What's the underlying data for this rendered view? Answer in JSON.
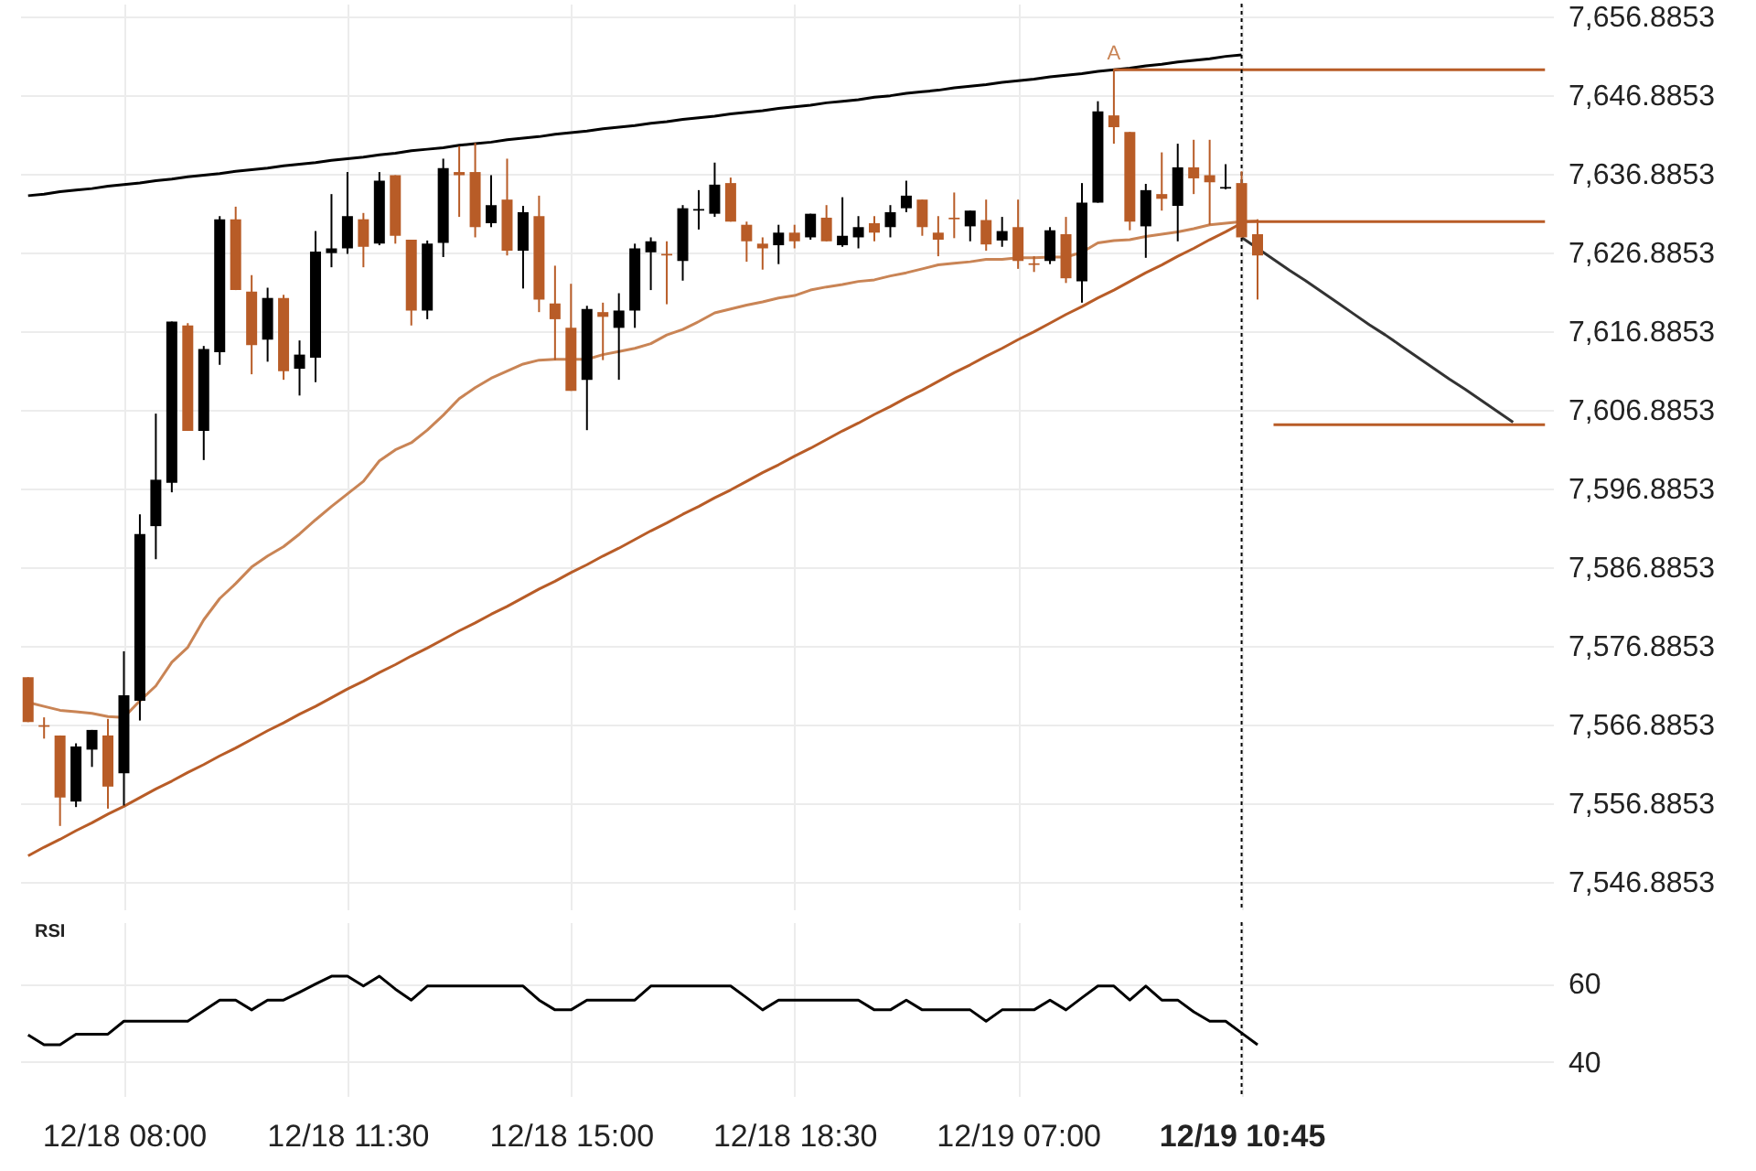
{
  "chart_data": [
    {
      "type": "candlestick",
      "categories": [
        null,
        null,
        null,
        null,
        null,
        null,
        "12/18 08:00",
        null,
        null,
        null,
        null,
        null,
        null,
        null,
        null,
        null,
        null,
        null,
        null,
        null,
        "12/18 11:30",
        null,
        null,
        null,
        null,
        null,
        null,
        null,
        null,
        null,
        null,
        null,
        null,
        null,
        "12/18 15:00",
        null,
        null,
        null,
        null,
        null,
        null,
        null,
        null,
        null,
        null,
        null,
        null,
        null,
        "12/18 18:30",
        null,
        null,
        null,
        null,
        null,
        null,
        null,
        null,
        null,
        null,
        null,
        null,
        null,
        "12/19 07:00",
        null,
        null,
        null,
        null,
        null,
        null,
        null,
        null,
        null,
        null,
        null,
        null,
        null,
        "12/19 10:45",
        null,
        null,
        null,
        null,
        null,
        null,
        null,
        null,
        null,
        null,
        null,
        null,
        null,
        null,
        null,
        null,
        null,
        null,
        null
      ],
      "ohlc": [
        [
          7572.9,
          7572.9,
          7567.2,
          7567.2
        ],
        [
          7566.8,
          7567.8,
          7565.1,
          7566.6
        ],
        [
          7565.5,
          7565.5,
          7554.0,
          7557.6
        ],
        [
          7557.1,
          7564.5,
          7556.4,
          7564.1
        ],
        [
          7563.7,
          7566.2,
          7561.5,
          7566.2
        ],
        [
          7565.5,
          7567.6,
          7556.2,
          7559.0
        ],
        [
          7560.7,
          7576.2,
          7556.6,
          7570.6
        ],
        [
          7569.9,
          7593.6,
          7567.4,
          7591.1
        ],
        [
          7592.1,
          7606.4,
          7587.9,
          7598.0
        ],
        [
          7597.6,
          7618.1,
          7596.4,
          7618.1
        ],
        [
          7617.6,
          7617.9,
          7604.2,
          7604.2
        ],
        [
          7604.2,
          7615.0,
          7600.5,
          7614.6
        ],
        [
          7614.2,
          7631.5,
          7612.6,
          7631.1
        ],
        [
          7631.1,
          7632.7,
          7622.1,
          7622.1
        ],
        [
          7621.9,
          7624.0,
          7611.4,
          7615.1
        ],
        [
          7615.8,
          7622.4,
          7613.0,
          7621.1
        ],
        [
          7621.1,
          7621.5,
          7610.7,
          7611.8
        ],
        [
          7612.1,
          7615.7,
          7608.7,
          7613.9
        ],
        [
          7613.5,
          7629.6,
          7610.4,
          7627.0
        ],
        [
          7626.8,
          7634.3,
          7625.0,
          7627.4
        ],
        [
          7627.4,
          7637.1,
          7626.7,
          7631.5
        ],
        [
          7631.1,
          7631.9,
          7625.0,
          7627.6
        ],
        [
          7628.0,
          7637.1,
          7627.8,
          7636.0
        ],
        [
          7636.7,
          7636.7,
          7628.0,
          7629.0
        ],
        [
          7628.5,
          7628.5,
          7617.6,
          7619.5
        ],
        [
          7619.5,
          7628.4,
          7618.4,
          7628.0
        ],
        [
          7628.1,
          7638.8,
          7626.3,
          7637.6
        ],
        [
          7637.1,
          7640.4,
          7631.4,
          7636.7
        ],
        [
          7637.1,
          7640.8,
          7628.8,
          7630.1
        ],
        [
          7630.6,
          7636.7,
          7630.1,
          7632.9
        ],
        [
          7633.6,
          7638.8,
          7626.5,
          7627.1
        ],
        [
          7627.1,
          7632.8,
          7622.3,
          7632.0
        ],
        [
          7631.5,
          7634.1,
          7619.3,
          7620.9
        ],
        [
          7620.4,
          7625.2,
          7613.2,
          7618.4
        ],
        [
          7617.3,
          7622.9,
          7609.3,
          7609.3
        ],
        [
          7610.7,
          7620.1,
          7604.3,
          7619.7
        ],
        [
          7619.3,
          7620.5,
          7613.2,
          7618.7
        ],
        [
          7617.3,
          7621.7,
          7610.7,
          7619.5
        ],
        [
          7619.5,
          7628.0,
          7617.3,
          7627.4
        ],
        [
          7626.9,
          7628.8,
          7622.1,
          7628.3
        ],
        [
          7626.7,
          7628.3,
          7620.3,
          7626.5
        ],
        [
          7625.8,
          7632.9,
          7623.3,
          7632.5
        ],
        [
          7632.2,
          7634.8,
          7629.8,
          7632.4
        ],
        [
          7631.8,
          7638.3,
          7631.4,
          7635.5
        ],
        [
          7635.7,
          7636.4,
          7630.8,
          7630.8
        ],
        [
          7630.4,
          7630.8,
          7625.7,
          7628.3
        ],
        [
          7628.0,
          7628.8,
          7624.7,
          7627.4
        ],
        [
          7627.8,
          7630.4,
          7625.4,
          7629.4
        ],
        [
          7629.4,
          7630.4,
          7627.4,
          7628.3
        ],
        [
          7628.8,
          7631.8,
          7628.5,
          7631.8
        ],
        [
          7631.3,
          7632.9,
          7628.3,
          7628.3
        ],
        [
          7627.8,
          7633.9,
          7627.6,
          7629.0
        ],
        [
          7628.8,
          7631.5,
          7627.4,
          7630.1
        ],
        [
          7630.6,
          7631.5,
          7628.3,
          7629.4
        ],
        [
          7630.1,
          7632.9,
          7628.8,
          7632.0
        ],
        [
          7632.5,
          7636.0,
          7632.0,
          7634.1
        ],
        [
          7633.6,
          7633.6,
          7629.0,
          7630.1
        ],
        [
          7629.4,
          7631.5,
          7626.4,
          7628.5
        ],
        [
          7631.3,
          7634.5,
          7628.7,
          7631.1
        ],
        [
          7630.2,
          7632.2,
          7628.3,
          7632.2
        ],
        [
          7631.0,
          7633.6,
          7627.1,
          7627.9
        ],
        [
          7628.4,
          7631.4,
          7627.6,
          7629.6
        ],
        [
          7630.1,
          7633.6,
          7624.8,
          7625.8
        ],
        [
          7625.5,
          7626.4,
          7624.4,
          7625.3
        ],
        [
          7625.8,
          7630.1,
          7625.4,
          7629.7
        ],
        [
          7629.2,
          7631.4,
          7623.0,
          7623.6
        ],
        [
          7623.2,
          7635.7,
          7620.5,
          7633.2
        ],
        [
          7633.2,
          7646.1,
          7633.2,
          7644.8
        ],
        [
          7644.3,
          7650.2,
          7640.7,
          7642.8
        ],
        [
          7642.2,
          7642.2,
          7629.7,
          7630.8
        ],
        [
          7630.2,
          7635.6,
          7626.2,
          7634.8
        ],
        [
          7634.3,
          7639.6,
          7632.2,
          7633.7
        ],
        [
          7632.8,
          7640.7,
          7628.3,
          7637.7
        ],
        [
          7637.7,
          7641.2,
          7634.3,
          7636.3
        ],
        [
          7636.7,
          7641.2,
          7630.4,
          7635.8
        ],
        [
          7635.0,
          7638.1,
          7634.9,
          7635.2
        ],
        [
          7635.7,
          7637.2,
          7628.8,
          7628.8
        ],
        [
          7629.2,
          7631.1,
          7620.9,
          7626.5
        ],
        null,
        null,
        null,
        null,
        null,
        null,
        null,
        null,
        null,
        null,
        null,
        null,
        null,
        null,
        null,
        null,
        null,
        null
      ],
      "colors": [
        "#b85c27",
        "#b85c27",
        "#b85c27",
        "#000000",
        "#000000",
        "#b85c27",
        "#000000",
        "#000000",
        "#000000",
        "#000000",
        "#b85c27",
        "#000000",
        "#000000",
        "#b85c27",
        "#b85c27",
        "#000000",
        "#b85c27",
        "#000000",
        "#000000",
        "#000000",
        "#000000",
        "#b85c27",
        "#000000",
        "#b85c27",
        "#b85c27",
        "#000000",
        "#000000",
        "#b85c27",
        "#b85c27",
        "#000000",
        "#b85c27",
        "#000000",
        "#b85c27",
        "#b85c27",
        "#b85c27",
        "#000000",
        "#b85c27",
        "#000000",
        "#000000",
        "#000000",
        "#b85c27",
        "#000000",
        "#000000",
        "#000000",
        "#b85c27",
        "#b85c27",
        "#b85c27",
        "#000000",
        "#b85c27",
        "#000000",
        "#b85c27",
        "#000000",
        "#000000",
        "#b85c27",
        "#000000",
        "#000000",
        "#b85c27",
        "#b85c27",
        "#b85c27",
        "#000000",
        "#b85c27",
        "#000000",
        "#b85c27",
        "#b85c27",
        "#000000",
        "#b85c27",
        "#000000",
        "#000000",
        "#b85c27",
        "#b85c27",
        "#000000",
        "#b85c27",
        "#000000",
        "#b85c27",
        "#b85c27",
        "#000000",
        "#b85c27",
        "#b85c27",
        null,
        null,
        null,
        null,
        null,
        null,
        null,
        null,
        null,
        null,
        null,
        null,
        null,
        null,
        null,
        null,
        null,
        null
      ],
      "series": [
        {
          "type": "line",
          "color": "#c98455",
          "values": [
            7569.7,
            7569.2,
            7568.7,
            7568.5,
            7568.3,
            7567.9,
            7567.8,
            7569.9,
            7571.8,
            7574.8,
            7576.7,
            7580.2,
            7582.9,
            7584.8,
            7586.9,
            7588.3,
            7589.5,
            7591.1,
            7592.9,
            7594.6,
            7596.2,
            7597.8,
            7600.4,
            7601.8,
            7602.7,
            7604.3,
            7606.2,
            7608.3,
            7609.7,
            7610.9,
            7611.8,
            7612.7,
            7613.2,
            7613.3,
            7613.3,
            7613.3,
            7613.9,
            7614.3,
            7614.7,
            7615.3,
            7616.4,
            7617.1,
            7618.1,
            7619.2,
            7619.7,
            7620.2,
            7620.6,
            7621.1,
            7621.4,
            7622.1,
            7622.5,
            7622.8,
            7623.2,
            7623.4,
            7623.9,
            7624.3,
            7624.8,
            7625.3,
            7625.5,
            7625.7,
            7626.0,
            7626.0,
            7626.2,
            7626.2,
            7626.3,
            7626.3,
            7626.9,
            7628.1,
            7628.4,
            7628.5,
            7628.9,
            7629.2,
            7629.5,
            7629.9,
            7630.4,
            7630.6,
            7630.8,
            7630.9,
            null,
            null,
            null,
            null,
            null,
            null,
            null,
            null,
            null,
            null,
            null,
            null,
            null,
            null,
            null,
            null,
            null,
            null
          ]
        },
        {
          "type": "line",
          "color": "#000000",
          "values": [
            7634.1,
            7634.3,
            7634.6,
            7634.8,
            7635.0,
            7635.3,
            7635.5,
            7635.7,
            7636.0,
            7636.2,
            7636.5,
            7636.7,
            7636.9,
            7637.2,
            7637.4,
            7637.6,
            7637.9,
            7638.1,
            7638.3,
            7638.6,
            7638.8,
            7639.0,
            7639.3,
            7639.5,
            7639.8,
            7640.0,
            7640.2,
            7640.5,
            7640.7,
            7640.9,
            7641.2,
            7641.4,
            7641.6,
            7641.9,
            7642.1,
            7642.3,
            7642.6,
            7642.8,
            7643.0,
            7643.3,
            7643.5,
            7643.8,
            7644.0,
            7644.2,
            7644.5,
            7644.7,
            7644.9,
            7645.2,
            7645.4,
            7645.6,
            7645.9,
            7646.1,
            7646.3,
            7646.6,
            7646.8,
            7647.1,
            7647.3,
            7647.5,
            7647.8,
            7648.0,
            7648.2,
            7648.5,
            7648.7,
            7648.9,
            7649.2,
            7649.4,
            7649.6,
            7649.9,
            7650.1,
            7650.3,
            7650.6,
            7650.8,
            7651.1,
            7651.3,
            7651.5,
            7651.8,
            7652.0,
            null,
            null,
            null,
            null,
            null,
            null,
            null,
            null,
            null,
            null,
            null,
            null,
            null,
            null,
            null,
            null,
            null,
            null,
            null
          ]
        },
        {
          "type": "line",
          "color": "#b85c27",
          "values": [
            7550.2,
            7551.3,
            7552.3,
            7553.4,
            7554.4,
            7555.5,
            7556.5,
            7557.6,
            7558.7,
            7559.7,
            7560.8,
            7561.8,
            7562.9,
            7563.9,
            7565.0,
            7566.1,
            7567.1,
            7568.2,
            7569.2,
            7570.3,
            7571.4,
            7572.4,
            7573.5,
            7574.5,
            7575.6,
            7576.6,
            7577.7,
            7578.8,
            7579.8,
            7580.9,
            7581.9,
            7583.0,
            7584.1,
            7585.1,
            7586.2,
            7587.2,
            7588.3,
            7589.3,
            7590.4,
            7591.5,
            7592.5,
            7593.6,
            7594.6,
            7595.7,
            7596.7,
            7597.8,
            7598.9,
            7599.9,
            7601.0,
            7602.0,
            7603.1,
            7604.2,
            7605.2,
            7606.3,
            7607.3,
            7608.4,
            7609.4,
            7610.5,
            7611.6,
            7612.6,
            7613.7,
            7614.7,
            7615.8,
            7616.8,
            7617.9,
            7619.0,
            7620.0,
            7621.1,
            7622.1,
            7623.2,
            7624.3,
            7625.3,
            7626.4,
            7627.4,
            7628.5,
            7629.5,
            7630.6,
            null,
            null,
            null,
            null,
            null,
            null,
            null,
            null,
            null,
            null,
            null,
            null,
            null,
            null,
            null,
            null,
            null,
            null,
            null
          ]
        },
        {
          "type": "line",
          "color": "#b85c27",
          "values": [
            null,
            null,
            null,
            null,
            null,
            null,
            null,
            null,
            null,
            null,
            null,
            null,
            null,
            null,
            null,
            null,
            null,
            null,
            null,
            null,
            null,
            null,
            null,
            null,
            null,
            null,
            null,
            null,
            null,
            null,
            null,
            null,
            null,
            null,
            null,
            null,
            null,
            null,
            null,
            null,
            null,
            null,
            null,
            null,
            null,
            null,
            null,
            null,
            null,
            null,
            null,
            null,
            null,
            null,
            null,
            null,
            null,
            null,
            null,
            null,
            null,
            null,
            null,
            null,
            null,
            null,
            null,
            null,
            7650.1,
            7650.1,
            7650.1,
            7650.1,
            7650.1,
            7650.1,
            7650.1,
            7650.1,
            7650.1,
            7650.1,
            7650.1,
            7650.1,
            7650.1,
            7650.1,
            7650.1,
            7650.1,
            7650.1,
            7650.1,
            7650.1,
            7650.1,
            7650.1,
            7650.1,
            7650.1,
            7650.1,
            7650.1,
            7650.1,
            7650.1,
            7650.1
          ]
        },
        {
          "type": "line",
          "color": "#b85c27",
          "values": [
            null,
            null,
            null,
            null,
            null,
            null,
            null,
            null,
            null,
            null,
            null,
            null,
            null,
            null,
            null,
            null,
            null,
            null,
            null,
            null,
            null,
            null,
            null,
            null,
            null,
            null,
            null,
            null,
            null,
            null,
            null,
            null,
            null,
            null,
            null,
            null,
            null,
            null,
            null,
            null,
            null,
            null,
            null,
            null,
            null,
            null,
            null,
            null,
            null,
            null,
            null,
            null,
            null,
            null,
            null,
            null,
            null,
            null,
            null,
            null,
            null,
            null,
            null,
            null,
            null,
            null,
            null,
            null,
            null,
            null,
            null,
            null,
            null,
            null,
            null,
            null,
            7630.8,
            7630.8,
            7630.8,
            7630.8,
            7630.8,
            7630.8,
            7630.8,
            7630.8,
            7630.8,
            7630.8,
            7630.8,
            7630.8,
            7630.8,
            7630.8,
            7630.8,
            7630.8,
            7630.8,
            7630.8,
            7630.8,
            7630.8
          ]
        },
        {
          "type": "line",
          "color": "#b85c27",
          "values": [
            null,
            null,
            null,
            null,
            null,
            null,
            null,
            null,
            null,
            null,
            null,
            null,
            null,
            null,
            null,
            null,
            null,
            null,
            null,
            null,
            null,
            null,
            null,
            null,
            null,
            null,
            null,
            null,
            null,
            null,
            null,
            null,
            null,
            null,
            null,
            null,
            null,
            null,
            null,
            null,
            null,
            null,
            null,
            null,
            null,
            null,
            null,
            null,
            null,
            null,
            null,
            null,
            null,
            null,
            null,
            null,
            null,
            null,
            null,
            null,
            null,
            null,
            null,
            null,
            null,
            null,
            null,
            null,
            null,
            null,
            null,
            null,
            null,
            null,
            null,
            null,
            null,
            null,
            7605.0,
            7605.0,
            7605.0,
            7605.0,
            7605.0,
            7605.0,
            7605.0,
            7605.0,
            7605.0,
            7605.0,
            7605.0,
            7605.0,
            7605.0,
            7605.0,
            7605.0,
            7605.0,
            7605.0,
            7605.0
          ]
        },
        {
          "type": "line",
          "color": "#333333",
          "values": [
            null,
            null,
            null,
            null,
            null,
            null,
            null,
            null,
            null,
            null,
            null,
            null,
            null,
            null,
            null,
            null,
            null,
            null,
            null,
            null,
            null,
            null,
            null,
            null,
            null,
            null,
            null,
            null,
            null,
            null,
            null,
            null,
            null,
            null,
            null,
            null,
            null,
            null,
            null,
            null,
            null,
            null,
            null,
            null,
            null,
            null,
            null,
            null,
            null,
            null,
            null,
            null,
            null,
            null,
            null,
            null,
            null,
            null,
            null,
            null,
            null,
            null,
            null,
            null,
            null,
            null,
            null,
            null,
            null,
            null,
            null,
            null,
            null,
            null,
            null,
            null,
            7628.8,
            7627.4,
            7626.0,
            7624.6,
            7623.3,
            7621.9,
            7620.5,
            7619.1,
            7617.7,
            7616.4,
            7615.0,
            7613.6,
            7612.2,
            7610.8,
            7609.5,
            7608.1,
            7606.7,
            7605.3,
            null,
            null
          ]
        }
      ],
      "annotations": [
        {
          "text": "A",
          "y": 7650.2
        }
      ],
      "ref_lines": [
        {
          "axis": "x",
          "value": "12/19 10:45",
          "color": "#000000",
          "line_style": "dotted"
        }
      ],
      "ylim": [
        7543.4,
        7658.5
      ],
      "yticks": [
        {
          "value": 7546.8853,
          "label": "7,546.8853"
        },
        {
          "value": 7556.8853,
          "label": "7,556.8853"
        },
        {
          "value": 7566.8853,
          "label": "7,566.8853"
        },
        {
          "value": 7576.8853,
          "label": "7,576.8853"
        },
        {
          "value": 7586.8853,
          "label": "7,586.8853"
        },
        {
          "value": 7596.8853,
          "label": "7,596.8853"
        },
        {
          "value": 7606.8853,
          "label": "7,606.8853"
        },
        {
          "value": 7616.8853,
          "label": "7,616.8853"
        },
        {
          "value": 7626.8853,
          "label": "7,626.8853"
        },
        {
          "value": 7636.8853,
          "label": "7,636.8853"
        },
        {
          "value": 7646.8853,
          "label": "7,646.8853"
        },
        {
          "value": 7656.8853,
          "label": "7,656.8853"
        }
      ],
      "grid": true,
      "tick_labels": "y"
    },
    {
      "type": "line",
      "title": "RSI",
      "categories": [
        null,
        null,
        null,
        null,
        null,
        null,
        "12/18 08:00",
        null,
        null,
        null,
        null,
        null,
        null,
        null,
        null,
        null,
        null,
        null,
        null,
        null,
        "12/18 11:30",
        null,
        null,
        null,
        null,
        null,
        null,
        null,
        null,
        null,
        null,
        null,
        null,
        null,
        "12/18 15:00",
        null,
        null,
        null,
        null,
        null,
        null,
        null,
        null,
        null,
        null,
        null,
        null,
        null,
        "12/18 18:30",
        null,
        null,
        null,
        null,
        null,
        null,
        null,
        null,
        null,
        null,
        null,
        null,
        null,
        "12/19 07:00",
        null,
        null,
        null,
        null,
        null,
        null,
        null,
        null,
        null,
        null,
        null,
        null,
        null,
        "12/19 10:45",
        null,
        null,
        null,
        null,
        null,
        null,
        null,
        null,
        null,
        null,
        null,
        null,
        null,
        null,
        null,
        null,
        null,
        null,
        null
      ],
      "series": [
        {
          "color": "#000000",
          "values": [
            46.9,
            44.4,
            44.4,
            47.1,
            47.1,
            47.1,
            50.4,
            50.4,
            50.4,
            50.4,
            50.4,
            53.1,
            55.8,
            55.8,
            53.3,
            55.8,
            55.8,
            57.8,
            59.9,
            61.9,
            61.9,
            59.4,
            61.9,
            58.6,
            55.8,
            59.4,
            59.4,
            59.4,
            59.4,
            59.4,
            59.4,
            59.4,
            55.8,
            53.3,
            53.3,
            55.8,
            55.8,
            55.8,
            55.8,
            59.4,
            59.4,
            59.4,
            59.4,
            59.4,
            59.4,
            56.4,
            53.3,
            55.8,
            55.8,
            55.8,
            55.8,
            55.8,
            55.8,
            53.3,
            53.3,
            55.8,
            53.3,
            53.3,
            53.3,
            53.3,
            50.4,
            53.3,
            53.3,
            53.3,
            55.8,
            53.3,
            56.4,
            59.4,
            59.4,
            55.8,
            59.4,
            55.8,
            55.8,
            52.8,
            50.4,
            50.4,
            47.4,
            44.4,
            null,
            null,
            null,
            null,
            null,
            null,
            null,
            null,
            null,
            null,
            null,
            null,
            null,
            null,
            null,
            null,
            null,
            null
          ]
        }
      ],
      "ref_lines": [
        {
          "axis": "x",
          "value": "12/19 10:45",
          "color": "#000000",
          "line_style": "dotted"
        }
      ],
      "ylim": [
        31.3,
        75.7
      ],
      "yticks": [
        40,
        60
      ],
      "grid": true
    }
  ]
}
